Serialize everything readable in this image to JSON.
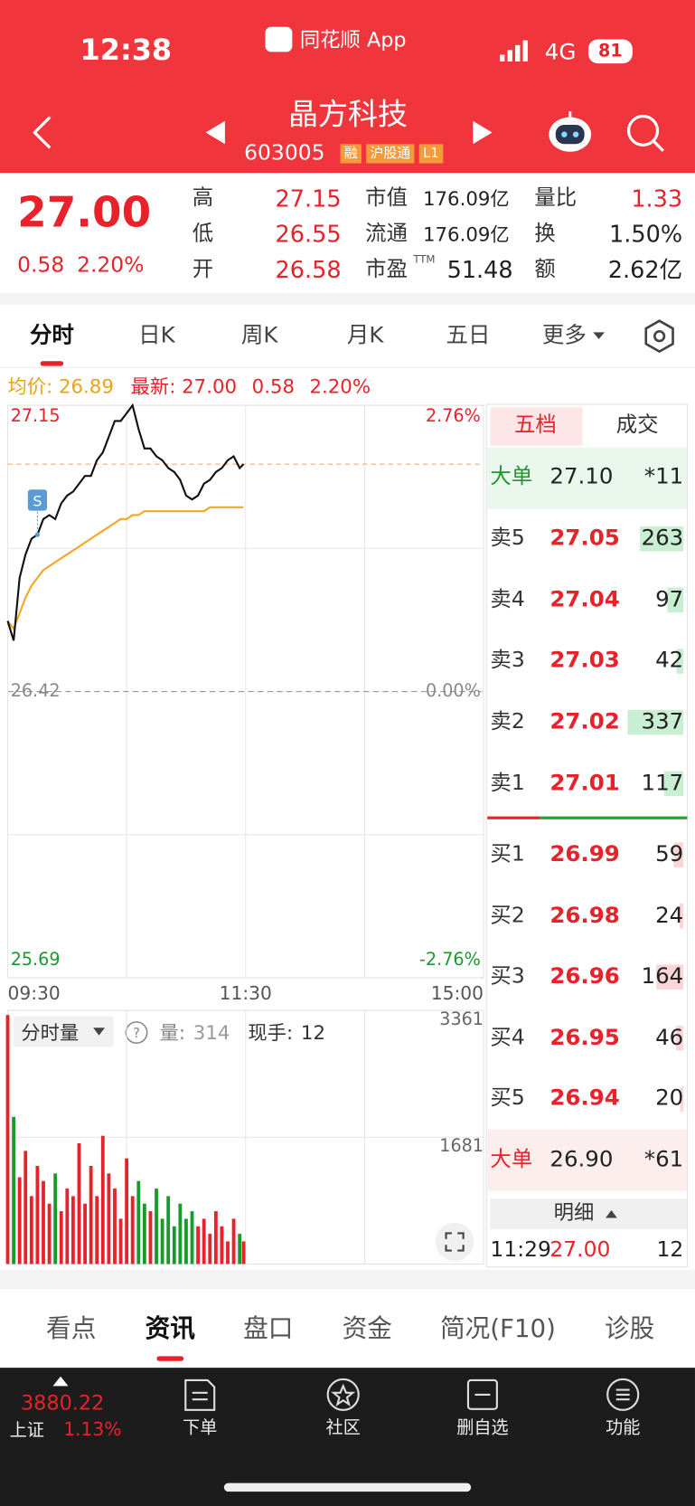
{
  "status_bar": {
    "time": "12:38",
    "app": "同花顺 App",
    "network": "4G",
    "battery": "81"
  },
  "header": {
    "title": "晶方科技",
    "code": "603005",
    "tags": [
      "融",
      "沪股通",
      "L1"
    ]
  },
  "quote": {
    "price": "27.00",
    "change": "0.58",
    "change_pct": "2.20%",
    "stats": [
      {
        "label": "高",
        "value": "27.15"
      },
      {
        "label": "市值",
        "value": "176.09亿"
      },
      {
        "label": "量比",
        "value": "1.33"
      },
      {
        "label": "低",
        "value": "26.55"
      },
      {
        "label": "流通",
        "value": "176.09亿"
      },
      {
        "label": "换",
        "value": "1.50%"
      },
      {
        "label": "开",
        "value": "26.58"
      },
      {
        "label": "市盈",
        "sup": "TTM",
        "value": "51.48"
      },
      {
        "label": "额",
        "value": "2.62亿"
      }
    ]
  },
  "chart_tabs": [
    "分时",
    "日K",
    "周K",
    "月K",
    "五日",
    "更多"
  ],
  "summary": {
    "avg": "均价: 26.89",
    "latest": "最新: 27.00",
    "change": "0.58",
    "change_pct": "2.20%"
  },
  "chart_data": [
    {
      "type": "line",
      "x": [
        "09:30",
        "09:33",
        "09:36",
        "09:39",
        "09:42",
        "09:45",
        "09:48",
        "09:51",
        "09:54",
        "09:57",
        "10:00",
        "10:03",
        "10:06",
        "10:09",
        "10:12",
        "10:15",
        "10:18",
        "10:21",
        "10:24",
        "10:27",
        "10:30",
        "10:33",
        "10:36",
        "10:39",
        "10:42",
        "10:45",
        "10:48",
        "10:51",
        "10:54",
        "10:57",
        "11:00",
        "11:03",
        "11:06",
        "11:09",
        "11:12",
        "11:15",
        "11:18",
        "11:21",
        "11:24",
        "11:27",
        "11:29"
      ],
      "series": [
        {
          "color": "#111111",
          "values": [
            26.6,
            26.55,
            26.71,
            26.77,
            26.81,
            26.82,
            26.86,
            26.87,
            26.86,
            26.9,
            26.92,
            26.93,
            26.95,
            26.97,
            26.97,
            27.01,
            27.03,
            27.07,
            27.11,
            27.11,
            27.13,
            27.15,
            27.09,
            27.04,
            27.04,
            27.02,
            27.01,
            26.99,
            26.98,
            26.96,
            26.92,
            26.91,
            26.92,
            26.95,
            26.96,
            26.98,
            26.99,
            27.01,
            27.02,
            26.99,
            27.0
          ]
        },
        {
          "color": "#f5a623",
          "values": [
            26.6,
            26.58,
            26.62,
            26.66,
            26.69,
            26.71,
            26.73,
            26.74,
            26.75,
            26.76,
            26.77,
            26.78,
            26.79,
            26.8,
            26.81,
            26.82,
            26.83,
            26.84,
            26.85,
            26.86,
            26.86,
            26.87,
            26.87,
            26.88,
            26.88,
            26.88,
            26.88,
            26.88,
            26.88,
            26.88,
            26.88,
            26.88,
            26.88,
            26.88,
            26.89,
            26.89,
            26.89,
            26.89,
            26.89,
            26.89,
            26.89
          ]
        }
      ],
      "xlim": [
        "09:30",
        "15:00"
      ],
      "xticks": [
        "09:30",
        "11:30",
        "15:00"
      ],
      "ylim": [
        25.69,
        27.15
      ],
      "yticks": [
        27.15,
        26.42,
        25.69
      ],
      "y2lim": [
        -2.76,
        2.76
      ],
      "y2ticks": [
        {
          "value": 2.76,
          "label": "2.76%"
        },
        {
          "value": 0,
          "label": "0.00%"
        },
        {
          "value": -2.76,
          "label": "-2.76%"
        }
      ],
      "annotations": [
        {
          "text": "S",
          "x": "09:45",
          "y": 26.82
        }
      ],
      "up_color": "#e8222b",
      "down_color": "#1a9a2e"
    },
    {
      "type": "bar",
      "x": [
        "09:30",
        "09:33",
        "09:36",
        "09:39",
        "09:42",
        "09:45",
        "09:48",
        "09:51",
        "09:54",
        "09:57",
        "10:00",
        "10:03",
        "10:06",
        "10:09",
        "10:12",
        "10:15",
        "10:18",
        "10:21",
        "10:24",
        "10:27",
        "10:30",
        "10:33",
        "10:36",
        "10:39",
        "10:42",
        "10:45",
        "10:48",
        "10:51",
        "10:54",
        "10:57",
        "11:00",
        "11:03",
        "11:06",
        "11:09",
        "11:12",
        "11:15",
        "11:18",
        "11:21",
        "11:24",
        "11:27",
        "11:29"
      ],
      "values": [
        3300,
        1950,
        1150,
        1500,
        900,
        1300,
        1100,
        800,
        1200,
        700,
        1000,
        900,
        1600,
        800,
        1300,
        900,
        1700,
        1200,
        1000,
        600,
        1400,
        900,
        1100,
        800,
        700,
        1000,
        600,
        900,
        500,
        800,
        600,
        700,
        500,
        600,
        400,
        700,
        500,
        300,
        600,
        400,
        300
      ],
      "ylim": [
        0,
        3361
      ],
      "yticks": [
        1681,
        3361
      ]
    }
  ],
  "volume_info": {
    "selector": "分时量",
    "volume_label": "量:",
    "volume": "314",
    "hand_label": "现手:",
    "hand": "12"
  },
  "order_book": {
    "tabs": [
      "五档",
      "成交"
    ],
    "big_sell": {
      "label": "大单",
      "price": "27.10",
      "volume": "*11"
    },
    "asks": [
      {
        "label": "卖5",
        "price": "27.05",
        "volume": 263
      },
      {
        "label": "卖4",
        "price": "27.04",
        "volume": 97
      },
      {
        "label": "卖3",
        "price": "27.03",
        "volume": 42
      },
      {
        "label": "卖2",
        "price": "27.02",
        "volume": 337
      },
      {
        "label": "卖1",
        "price": "27.01",
        "volume": 117
      }
    ],
    "bids": [
      {
        "label": "买1",
        "price": "26.99",
        "volume": 59
      },
      {
        "label": "买2",
        "price": "26.98",
        "volume": 24
      },
      {
        "label": "买3",
        "price": "26.96",
        "volume": 164
      },
      {
        "label": "买4",
        "price": "26.95",
        "volume": 46
      },
      {
        "label": "买5",
        "price": "26.94",
        "volume": 20
      }
    ],
    "big_buy": {
      "label": "大单",
      "price": "26.90",
      "volume": "*61"
    },
    "detail": "明细",
    "trade": {
      "time": "11:29",
      "price": "27.00",
      "volume": "12"
    }
  },
  "bottom_tabs": [
    "看点",
    "资讯",
    "盘口",
    "资金",
    "简况(F10)",
    "诊股"
  ],
  "footer": {
    "index": "3880.22",
    "index_name": "上证",
    "index_change": "1.13%",
    "nav": [
      "下单",
      "社区",
      "删自选",
      "功能"
    ]
  }
}
